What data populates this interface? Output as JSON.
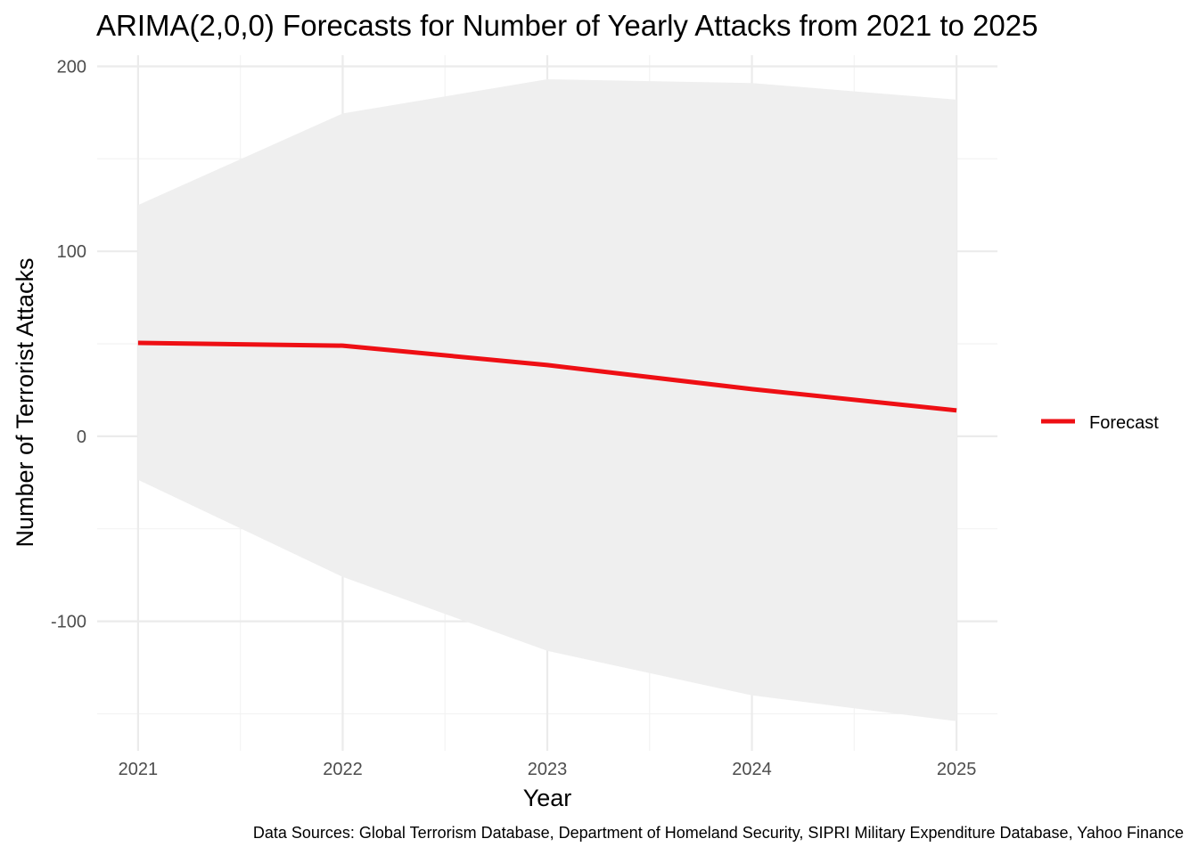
{
  "chart_data": {
    "type": "line",
    "title": "ARIMA(2,0,0) Forecasts for Number of Yearly Attacks from 2021 to 2025",
    "xlabel": "Year",
    "ylabel": "Number of Terrorist Attacks",
    "caption": "Data Sources: Global Terrorism Database, Department of Homeland Security, SIPRI Military Expenditure Database, Yahoo Finance",
    "x": [
      2021,
      2022,
      2023,
      2024,
      2025
    ],
    "x_tick_labels": [
      "2021",
      "2022",
      "2023",
      "2024",
      "2025"
    ],
    "y_ticks": [
      -100,
      0,
      100,
      200
    ],
    "y_tick_labels": [
      "-100",
      "0",
      "100",
      "200"
    ],
    "xlim": [
      2020.8,
      2025.2
    ],
    "ylim": [
      -170,
      206
    ],
    "grid": true,
    "legend_position": "right",
    "series": [
      {
        "name": "Forecast",
        "color": "#ee0f14",
        "values": [
          50.5,
          49,
          38.5,
          25.5,
          14
        ]
      }
    ],
    "confidence_band": {
      "color": "#efefef",
      "lower": [
        -23.5,
        -76,
        -116,
        -140,
        -154
      ],
      "upper": [
        125,
        174.5,
        193,
        191,
        182
      ]
    }
  }
}
